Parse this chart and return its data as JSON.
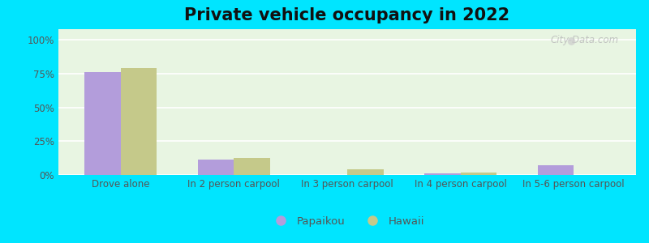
{
  "title": "Private vehicle occupancy in 2022",
  "categories": [
    "Drove alone",
    "In 2 person carpool",
    "In 3 person carpool",
    "In 4 person carpool",
    "In 5-6 person carpool"
  ],
  "papaikou_values": [
    76.0,
    11.5,
    0.0,
    1.2,
    7.5
  ],
  "hawaii_values": [
    79.0,
    12.5,
    4.0,
    2.0,
    0.3
  ],
  "papaikou_color": "#b39ddb",
  "hawaii_color": "#c5c98a",
  "background_outer": "#00e5ff",
  "background_inner": "#e8f5e0",
  "title_fontsize": 15,
  "axis_label_fontsize": 8.5,
  "legend_fontsize": 9.5,
  "yticks": [
    0,
    25,
    50,
    75,
    100
  ],
  "ylim": [
    0,
    108
  ],
  "bar_width": 0.32,
  "watermark": "City-Data.com"
}
